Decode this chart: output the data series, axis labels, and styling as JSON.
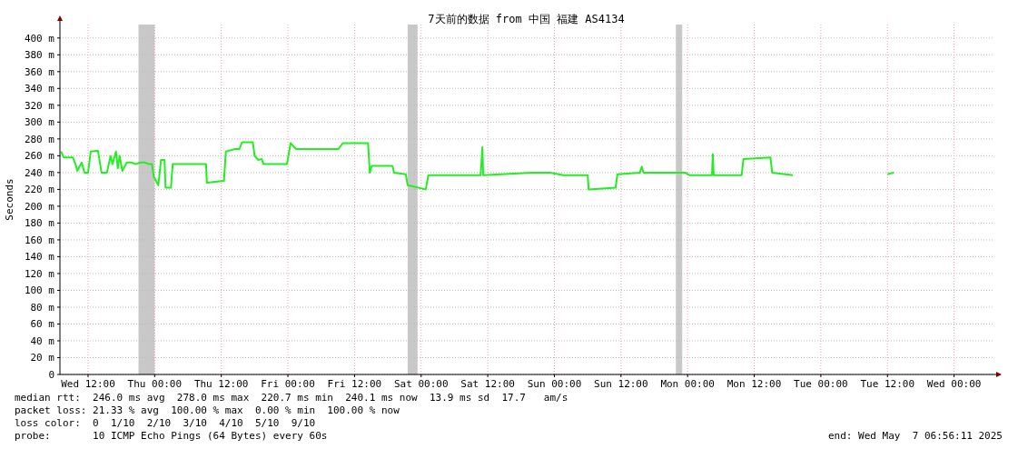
{
  "chart_data": {
    "type": "line",
    "title": "7天前的数据 from 中国 福建 AS4134",
    "ylabel": "Seconds",
    "x": [
      "2025-04-30T07:08",
      "2025-04-30T07:37",
      "2025-04-30T09:15",
      "2025-04-30T09:44",
      "2025-04-30T10:03",
      "2025-04-30T10:52",
      "2025-04-30T11:21",
      "2025-04-30T12:00",
      "2025-04-30T12:29",
      "2025-04-30T13:47",
      "2025-04-30T14:26",
      "2025-04-30T15:24",
      "2025-04-30T16:03",
      "2025-04-30T16:23",
      "2025-04-30T17:02",
      "2025-04-30T17:21",
      "2025-04-30T17:41",
      "2025-04-30T18:10",
      "2025-04-30T18:58",
      "2025-04-30T19:47",
      "2025-04-30T20:36",
      "2025-04-30T21:24",
      "2025-04-30T22:13",
      "2025-04-30T23:02",
      "2025-04-30T23:31",
      "2025-04-30T23:50",
      "2025-05-01T00:39",
      "2025-05-01T01:08",
      "2025-05-01T01:47",
      "2025-05-01T01:57",
      "2025-05-01T02:55",
      "2025-05-01T03:15",
      "2025-05-01T04:42",
      "2025-05-01T09:15",
      "2025-05-01T09:24",
      "2025-05-01T12:29",
      "2025-05-01T12:49",
      "2025-05-01T14:26",
      "2025-05-01T15:15",
      "2025-05-01T15:44",
      "2025-05-01T17:41",
      "2025-05-01T18:00",
      "2025-05-01T18:39",
      "2025-05-01T19:18",
      "2025-05-01T19:37",
      "2025-05-01T23:50",
      "2025-05-02T00:29",
      "2025-05-02T01:28",
      "2025-05-02T09:05",
      "2025-05-02T09:54",
      "2025-05-02T14:26",
      "2025-05-02T14:45",
      "2025-05-02T15:05",
      "2025-05-02T18:49",
      "2025-05-02T19:08",
      "2025-05-02T21:15",
      "2025-05-02T21:34",
      "2025-05-03T00:49",
      "2025-05-03T01:18",
      "2025-05-03T10:42",
      "2025-05-03T11:02",
      "2025-05-03T11:11",
      "2025-05-03T19:57",
      "2025-05-03T23:11",
      "2025-05-04T01:37",
      "2025-05-04T06:00",
      "2025-05-04T06:10",
      "2025-05-04T11:02",
      "2025-05-04T11:21",
      "2025-05-04T15:24",
      "2025-05-04T15:44",
      "2025-05-04T16:03",
      "2025-05-04T21:53",
      "2025-05-04T23:31",
      "2025-05-05T00:19",
      "2025-05-05T04:23",
      "2025-05-05T04:32",
      "2025-05-05T04:42",
      "2025-05-05T09:44",
      "2025-05-05T10:03",
      "2025-05-05T14:55",
      "2025-05-05T15:14",
      "2025-05-05T18:58",
      "2025-05-05T22:13",
      "2025-05-06T12:00",
      "2025-05-06T13:08"
    ],
    "series": [
      {
        "color": "#22ee22",
        "values": [
          265,
          258,
          258,
          250,
          242,
          252,
          240,
          240,
          265,
          266,
          240,
          240,
          260,
          250,
          265,
          245,
          260,
          242,
          252,
          252,
          250,
          252,
          252,
          250,
          250,
          235,
          225,
          255,
          255,
          222,
          222,
          250,
          250,
          250,
          228,
          230,
          265,
          268,
          268,
          276,
          276,
          260,
          255,
          256,
          250,
          250,
          275,
          268,
          268,
          275,
          275,
          240,
          248,
          248,
          240,
          238,
          225,
          220,
          237,
          237,
          270,
          237,
          240,
          240,
          237,
          237,
          220,
          222,
          238,
          240,
          247,
          240,
          240,
          240,
          237,
          237,
          262,
          237,
          237,
          256,
          258,
          240,
          237,
          null,
          238,
          240
        ]
      }
    ],
    "xlim": [
      "2025-04-30T06:56",
      "2025-05-07T06:56"
    ],
    "xticks": [
      {
        "value": "2025-04-30T12:00",
        "label": "Wed 12:00"
      },
      {
        "value": "2025-05-01T00:00",
        "label": "Thu 00:00"
      },
      {
        "value": "2025-05-01T12:00",
        "label": "Thu 12:00"
      },
      {
        "value": "2025-05-02T00:00",
        "label": "Fri 00:00"
      },
      {
        "value": "2025-05-02T12:00",
        "label": "Fri 12:00"
      },
      {
        "value": "2025-05-03T00:00",
        "label": "Sat 00:00"
      },
      {
        "value": "2025-05-03T12:00",
        "label": "Sat 12:00"
      },
      {
        "value": "2025-05-04T00:00",
        "label": "Sun 00:00"
      },
      {
        "value": "2025-05-04T12:00",
        "label": "Sun 12:00"
      },
      {
        "value": "2025-05-05T00:00",
        "label": "Mon 00:00"
      },
      {
        "value": "2025-05-05T12:00",
        "label": "Mon 12:00"
      },
      {
        "value": "2025-05-06T00:00",
        "label": "Tue 00:00"
      },
      {
        "value": "2025-05-06T12:00",
        "label": "Tue 12:00"
      },
      {
        "value": "2025-05-07T00:00",
        "label": "Wed 00:00"
      }
    ],
    "ylim": [
      0,
      416
    ],
    "yticks": [
      0,
      {
        "value": 20,
        "label": "20 m"
      },
      {
        "value": 40,
        "label": "40 m"
      },
      {
        "value": 60,
        "label": "60 m"
      },
      {
        "value": 80,
        "label": "80 m"
      },
      {
        "value": 100,
        "label": "100 m"
      },
      {
        "value": 120,
        "label": "120 m"
      },
      {
        "value": 140,
        "label": "140 m"
      },
      {
        "value": 160,
        "label": "160 m"
      },
      {
        "value": 180,
        "label": "180 m"
      },
      {
        "value": 200,
        "label": "200 m"
      },
      {
        "value": 220,
        "label": "220 m"
      },
      {
        "value": 240,
        "label": "240 m"
      },
      {
        "value": 260,
        "label": "260 m"
      },
      {
        "value": 280,
        "label": "280 m"
      },
      {
        "value": 300,
        "label": "300 m"
      },
      {
        "value": 320,
        "label": "320 m"
      },
      {
        "value": 340,
        "label": "340 m"
      },
      {
        "value": 360,
        "label": "360 m"
      },
      {
        "value": 380,
        "label": "380 m"
      },
      {
        "value": 400,
        "label": "400 m"
      }
    ],
    "bands": [
      {
        "axis": "x",
        "from": "2025-04-30T21:05",
        "to": "2025-05-01T00:00",
        "color": "#c8c8c8"
      },
      {
        "axis": "x",
        "from": "2025-05-02T21:34",
        "to": "2025-05-02T23:21",
        "color": "#c8c8c8"
      },
      {
        "axis": "x",
        "from": "2025-05-04T21:53",
        "to": "2025-05-04T23:02",
        "color": "#c8c8c8"
      }
    ],
    "grid": true,
    "line_style": "solid",
    "annotations": [
      "median rtt:  246.0 ms avg  278.0 ms max  220.7 ms min  240.1 ms now  13.9 ms sd  17.7   am/s",
      "packet loss: 21.33 % avg  100.00 % max  0.00 % min  100.00 % now",
      "loss color:  0  1/10  2/10  3/10  4/10  5/10  9/10",
      "probe:       10 ICMP Echo Pings (64 Bytes) every 60s",
      "end: Wed May  7 06:56:11 2025"
    ]
  }
}
